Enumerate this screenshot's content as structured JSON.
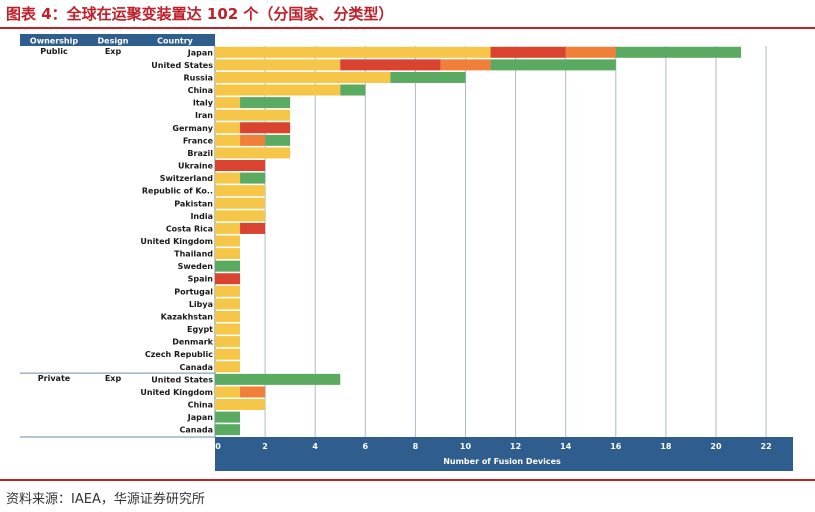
{
  "header": {
    "title": "图表 4：全球在运聚变装置达 102 个（分国家、分类型）"
  },
  "footer": {
    "source": "资料来源：IAEA，华源证券研究所"
  },
  "colors": {
    "header_bg": "#2e5d8e",
    "segment_1": "#f5c648",
    "segment_2": "#d9432f",
    "segment_3": "#f07f38",
    "segment_4": "#5aab61"
  },
  "chart_data": {
    "type": "bar",
    "orientation": "horizontal",
    "stacked": true,
    "column_headers": [
      "Ownership",
      "Design",
      "Country"
    ],
    "xlabel": "Number of Fusion Devices",
    "xlim": [
      0,
      23
    ],
    "xticks": [
      0,
      2,
      4,
      6,
      8,
      10,
      12,
      14,
      16,
      18,
      20,
      22
    ],
    "grid": true,
    "groups": [
      {
        "ownership": "Public",
        "design": "Exp",
        "rows": [
          {
            "country": "Japan",
            "segments": [
              11,
              3,
              2,
              5
            ]
          },
          {
            "country": "United States",
            "segments": [
              5,
              4,
              2,
              5
            ]
          },
          {
            "country": "Russia",
            "segments": [
              7,
              0,
              0,
              3
            ]
          },
          {
            "country": "China",
            "segments": [
              5,
              0,
              0,
              1
            ]
          },
          {
            "country": "Italy",
            "segments": [
              1,
              0,
              0,
              2
            ]
          },
          {
            "country": "Iran",
            "segments": [
              3,
              0,
              0,
              0
            ]
          },
          {
            "country": "Germany",
            "segments": [
              1,
              2,
              0,
              0
            ]
          },
          {
            "country": "France",
            "segments": [
              1,
              0,
              1,
              1
            ]
          },
          {
            "country": "Brazil",
            "segments": [
              3,
              0,
              0,
              0
            ]
          },
          {
            "country": "Ukraine",
            "segments": [
              0,
              2,
              0,
              0
            ]
          },
          {
            "country": "Switzerland",
            "segments": [
              1,
              0,
              0,
              1
            ]
          },
          {
            "country": "Republic of Ko..",
            "segments": [
              2,
              0,
              0,
              0
            ]
          },
          {
            "country": "Pakistan",
            "segments": [
              2,
              0,
              0,
              0
            ]
          },
          {
            "country": "India",
            "segments": [
              2,
              0,
              0,
              0
            ]
          },
          {
            "country": "Costa Rica",
            "segments": [
              1,
              1,
              0,
              0
            ]
          },
          {
            "country": "United Kingdom",
            "segments": [
              1,
              0,
              0,
              0
            ]
          },
          {
            "country": "Thailand",
            "segments": [
              1,
              0,
              0,
              0
            ]
          },
          {
            "country": "Sweden",
            "segments": [
              0,
              0,
              0,
              1
            ]
          },
          {
            "country": "Spain",
            "segments": [
              0,
              1,
              0,
              0
            ]
          },
          {
            "country": "Portugal",
            "segments": [
              1,
              0,
              0,
              0
            ]
          },
          {
            "country": "Libya",
            "segments": [
              1,
              0,
              0,
              0
            ]
          },
          {
            "country": "Kazakhstan",
            "segments": [
              1,
              0,
              0,
              0
            ]
          },
          {
            "country": "Egypt",
            "segments": [
              1,
              0,
              0,
              0
            ]
          },
          {
            "country": "Denmark",
            "segments": [
              1,
              0,
              0,
              0
            ]
          },
          {
            "country": "Czech Republic",
            "segments": [
              1,
              0,
              0,
              0
            ]
          },
          {
            "country": "Canada",
            "segments": [
              1,
              0,
              0,
              0
            ]
          }
        ]
      },
      {
        "ownership": "Private",
        "design": "Exp",
        "rows": [
          {
            "country": "United States",
            "segments": [
              0,
              0,
              0,
              5
            ]
          },
          {
            "country": "United Kingdom",
            "segments": [
              1,
              0,
              1,
              0
            ]
          },
          {
            "country": "China",
            "segments": [
              2,
              0,
              0,
              0
            ]
          },
          {
            "country": "Japan",
            "segments": [
              0,
              0,
              0,
              1
            ]
          },
          {
            "country": "Canada",
            "segments": [
              0,
              0,
              0,
              1
            ]
          }
        ]
      }
    ]
  }
}
